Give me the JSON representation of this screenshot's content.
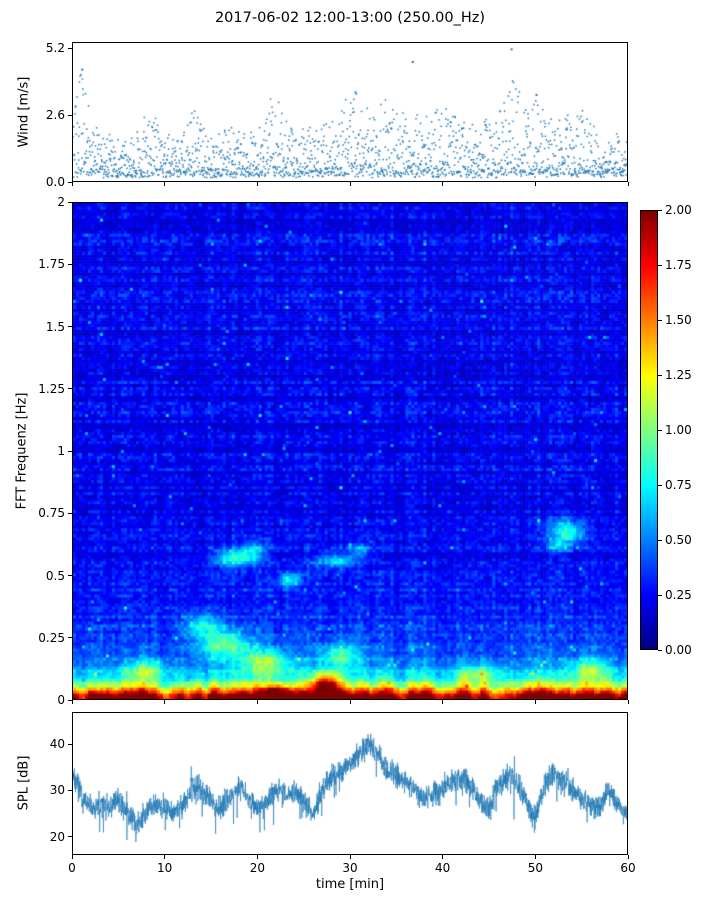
{
  "title": "2017-06-02 12:00-13:00 (250.00_Hz)",
  "chart_data": [
    {
      "type": "scatter",
      "panel": "wind",
      "ylabel": "Wind [m/s]",
      "ytick_values": [
        0.0,
        2.6,
        5.2
      ],
      "ytick_labels": [
        "0.0",
        "2.6",
        "5.2"
      ],
      "ylim": [
        0,
        5.45
      ],
      "xlim": [
        0,
        60
      ],
      "marker_color": "#1f77b4",
      "n_points": 1900,
      "envelope_per_min": [
        3.2,
        4.4,
        2.2,
        1.6,
        1.8,
        1.6,
        1.5,
        1.8,
        2.6,
        2.4,
        1.8,
        1.6,
        1.8,
        2.8,
        2.2,
        1.6,
        1.8,
        2.0,
        1.8,
        1.6,
        2.0,
        3.0,
        3.2,
        2.6,
        1.8,
        2.0,
        1.8,
        2.2,
        2.6,
        3.0,
        3.5,
        3.4,
        2.8,
        3.0,
        3.1,
        2.8,
        2.6,
        3.0,
        2.4,
        2.6,
        3.3,
        3.0,
        2.4,
        2.0,
        2.2,
        2.4,
        2.8,
        4.0,
        4.6,
        3.0,
        3.4,
        2.6,
        2.2,
        2.4,
        2.6,
        3.0,
        2.2,
        2.0,
        1.8,
        1.6,
        1.5
      ],
      "outliers": [
        [
          1.0,
          4.4
        ],
        [
          36.8,
          4.7
        ],
        [
          47.5,
          5.2
        ],
        [
          50.2,
          3.4
        ],
        [
          30.6,
          3.5
        ]
      ]
    },
    {
      "type": "heatmap",
      "panel": "spectrogram",
      "ylabel": "FFT Frequenz [Hz]",
      "ytick_values": [
        0,
        0.25,
        0.5,
        0.75,
        1,
        1.25,
        1.5,
        1.75,
        2
      ],
      "ytick_labels": [
        "0",
        "0.25",
        "0.5",
        "0.75",
        "1",
        "1.25",
        "1.5",
        "1.75",
        "2"
      ],
      "ylim": [
        0,
        2
      ],
      "xlim": [
        0,
        60
      ],
      "colormap": "jet",
      "vmin": 0,
      "vmax": 2,
      "colorbar": {
        "tick_values": [
          0,
          0.25,
          0.5,
          0.75,
          1,
          1.25,
          1.5,
          1.75,
          2
        ],
        "tick_labels": [
          "0.00",
          "0.25",
          "0.50",
          "0.75",
          "1.00",
          "1.25",
          "1.50",
          "1.75",
          "2.00"
        ]
      },
      "features": {
        "description": "mostly low power (blue) above 0.3 Hz, strong broadband energy below 0.15 Hz, hot (red) band at lowest frequencies",
        "streaks": [
          {
            "t": 17.5,
            "dt": 2.2,
            "f": 0.57,
            "df": 0.035,
            "amp": 0.6
          },
          {
            "t": 19.5,
            "dt": 1.5,
            "f": 0.6,
            "df": 0.04,
            "amp": 0.35
          },
          {
            "t": 23.5,
            "dt": 1.2,
            "f": 0.48,
            "df": 0.03,
            "amp": 0.5
          },
          {
            "t": 28.5,
            "dt": 2.2,
            "f": 0.56,
            "df": 0.03,
            "amp": 0.45
          },
          {
            "t": 31.0,
            "dt": 1.2,
            "f": 0.6,
            "df": 0.03,
            "amp": 0.3
          },
          {
            "t": 53.5,
            "dt": 2.0,
            "f": 0.68,
            "df": 0.045,
            "amp": 0.55
          },
          {
            "t": 52.5,
            "dt": 1.5,
            "f": 0.62,
            "df": 0.03,
            "amp": 0.35
          },
          {
            "t": 14.0,
            "dt": 2.0,
            "f": 0.3,
            "df": 0.05,
            "amp": 0.4
          },
          {
            "t": 16.5,
            "dt": 3.0,
            "f": 0.22,
            "df": 0.06,
            "amp": 0.55
          },
          {
            "t": 21.0,
            "dt": 2.5,
            "f": 0.15,
            "df": 0.05,
            "amp": 0.6
          },
          {
            "t": 22.0,
            "dt": 1.5,
            "f": 0.03,
            "df": 0.03,
            "amp": 0.8
          },
          {
            "t": 29.0,
            "dt": 2.0,
            "f": 0.18,
            "df": 0.05,
            "amp": 0.5
          },
          {
            "t": 27.5,
            "dt": 1.5,
            "f": 0.06,
            "df": 0.05,
            "amp": 1.1
          },
          {
            "t": 8.0,
            "dt": 2.0,
            "f": 0.12,
            "df": 0.04,
            "amp": 0.45
          },
          {
            "t": 44.0,
            "dt": 2.5,
            "f": 0.1,
            "df": 0.04,
            "amp": 0.4
          },
          {
            "t": 56.0,
            "dt": 2.0,
            "f": 0.12,
            "df": 0.05,
            "amp": 0.45
          }
        ]
      }
    },
    {
      "type": "line",
      "panel": "spl",
      "ylabel": "SPL [dB]",
      "xlabel": "time [min]",
      "ytick_values": [
        20,
        30,
        40
      ],
      "ytick_labels": [
        "20",
        "30",
        "40"
      ],
      "xtick_values": [
        0,
        10,
        20,
        30,
        40,
        50,
        60
      ],
      "xtick_labels": [
        "0",
        "10",
        "20",
        "30",
        "40",
        "50",
        "60"
      ],
      "ylim": [
        16,
        47
      ],
      "xlim": [
        0,
        60
      ],
      "line_color": "#1f77b4",
      "envelope_per_min": [
        34,
        28,
        26,
        27,
        26,
        28,
        25,
        22,
        26,
        27,
        26,
        25,
        27,
        31,
        30,
        27,
        26,
        29,
        31,
        28,
        26,
        27,
        30,
        29,
        30,
        28,
        24,
        30,
        33,
        34,
        36,
        38,
        40,
        38,
        35,
        33,
        32,
        30,
        28,
        29,
        30,
        32,
        33,
        31,
        28,
        26,
        31,
        33,
        32,
        28,
        23,
        31,
        34,
        32,
        30,
        28,
        27,
        26,
        30,
        27,
        25
      ],
      "band_halfwidth": 2.6
    }
  ]
}
